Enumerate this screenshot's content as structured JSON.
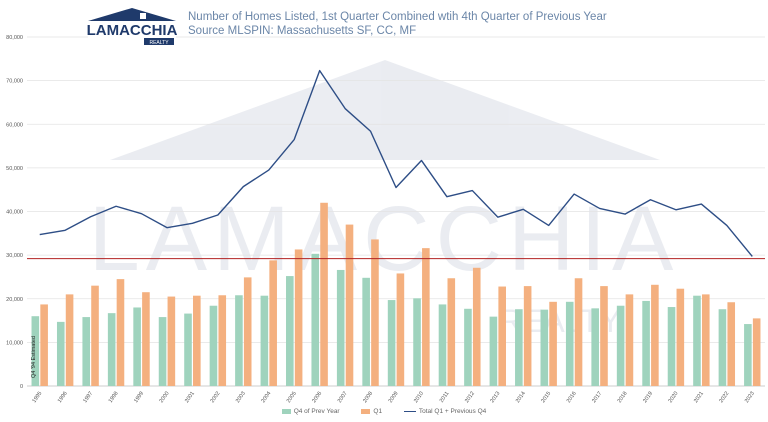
{
  "header": {
    "title": "Number of Homes Listed, 1st Quarter Combined wtih 4th Quarter of Previous Year",
    "source": "Source MLSPIN: Massachusetts SF, CC, MF"
  },
  "logo": {
    "brand": "LAMACCHIA",
    "sub": "REALTY",
    "color": "#1f3a6b"
  },
  "note": {
    "estimated": "Q4 '94 Estimated"
  },
  "colors": {
    "q4": "#9fd3bd",
    "q1": "#f4b07f",
    "total": "#2e4e86",
    "refline": "#b22222",
    "grid": "#e3e3e3"
  },
  "chart_data": {
    "type": "bar",
    "categories": [
      "1995",
      "1996",
      "1997",
      "1998",
      "1999",
      "2000",
      "2001",
      "2002",
      "2003",
      "2004",
      "2005",
      "2006",
      "2007",
      "2008",
      "2009",
      "2010",
      "2011",
      "2012",
      "2013",
      "2014",
      "2015",
      "2016",
      "2017",
      "2018",
      "2019",
      "2020",
      "2021",
      "2022",
      "2023"
    ],
    "series": [
      {
        "name": "Q4 of Prev Year",
        "type": "bar",
        "values": [
          16000,
          14700,
          15800,
          16700,
          18000,
          15800,
          16600,
          18400,
          20800,
          20700,
          25200,
          30300,
          26600,
          24800,
          19700,
          20100,
          18700,
          17700,
          15900,
          17600,
          17500,
          19300,
          17800,
          18400,
          19500,
          18100,
          20700,
          17600,
          14200
        ]
      },
      {
        "name": "Q1",
        "type": "bar",
        "values": [
          18700,
          21000,
          23000,
          24500,
          21500,
          20500,
          20700,
          20800,
          24900,
          28800,
          31300,
          42000,
          37000,
          33600,
          25800,
          31600,
          24700,
          27100,
          22800,
          22900,
          19300,
          24700,
          22900,
          21000,
          23200,
          22300,
          21000,
          19200,
          15500
        ]
      },
      {
        "name": "Total Q1 + Previous Q4",
        "type": "line",
        "values": [
          34700,
          35700,
          38800,
          41200,
          39500,
          36300,
          37300,
          39200,
          45700,
          49500,
          56500,
          72300,
          63600,
          58400,
          45500,
          51700,
          43400,
          44800,
          38700,
          40500,
          36800,
          44000,
          40700,
          39400,
          42700,
          40400,
          41700,
          36800,
          29700
        ]
      }
    ],
    "reference_line": 29200,
    "ylim": [
      0,
      80000
    ],
    "yticks": [
      0,
      10000,
      20000,
      30000,
      40000,
      50000,
      60000,
      70000,
      80000
    ],
    "ytick_labels": [
      "0",
      "10,000",
      "20,000",
      "30,000",
      "40,000",
      "50,000",
      "60,000",
      "70,000",
      "80,000"
    ],
    "grid": true,
    "legend_position": "bottom-center"
  }
}
